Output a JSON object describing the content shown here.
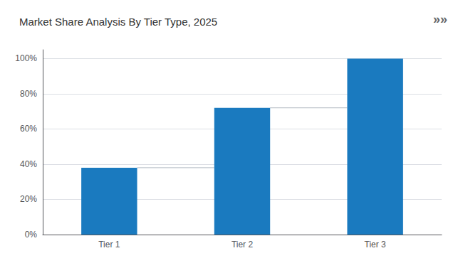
{
  "chart_data": {
    "type": "bar",
    "title": "Market Share Analysis By Tier Type, 2025",
    "annotations": [
      "»»"
    ],
    "categories": [
      "Tier 1",
      "Tier 2",
      "Tier 3"
    ],
    "values": [
      38,
      72,
      100
    ],
    "color": "#1a7abf",
    "ylim": [
      0,
      105
    ],
    "yticks": [
      {
        "value": 0,
        "label": "0%"
      },
      {
        "value": 20,
        "label": "20%"
      },
      {
        "value": 40,
        "label": "40%"
      },
      {
        "value": 60,
        "label": "60%"
      },
      {
        "value": 80,
        "label": "80%"
      },
      {
        "value": 100,
        "label": "100%"
      }
    ],
    "grid": true
  }
}
